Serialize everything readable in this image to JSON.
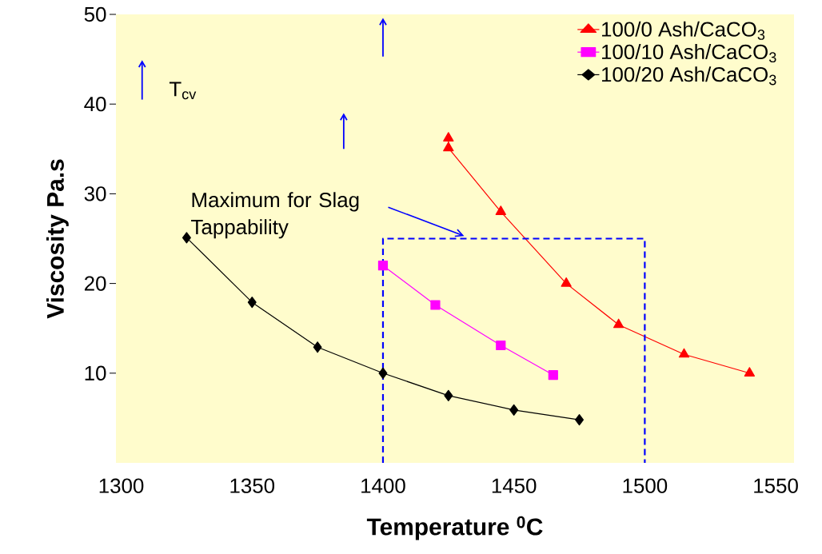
{
  "chart_data": {
    "type": "line",
    "xlabel": "Temperature $^{0}$C",
    "ylabel": "Viscosity Pa.s",
    "xlim": [
      1298,
      1557
    ],
    "ylim": [
      0,
      50
    ],
    "xticks": [
      1300,
      1350,
      1400,
      1450,
      1500,
      1550
    ],
    "yticks": [
      10,
      20,
      30,
      40,
      50
    ],
    "grid": false,
    "legend": "top right",
    "series": [
      {
        "name": "100/0 Ash/CaCO$_{3}$",
        "color": "#ff0000",
        "marker": "triangle",
        "x": [
          1425,
          1425,
          1445,
          1470,
          1490,
          1515,
          1540
        ],
        "values": [
          36.2,
          35.1,
          28.0,
          20.0,
          15.4,
          12.1,
          10.0
        ]
      },
      {
        "name": "100/10 Ash/CaCO$_{3}$",
        "color": "#ff00ff",
        "marker": "square",
        "x": [
          1400,
          1420,
          1445,
          1465
        ],
        "values": [
          22.0,
          17.6,
          13.1,
          9.8
        ]
      },
      {
        "name": "100/20 Ash/CaCO$_{3}$",
        "color": "#000000",
        "marker": "diamond",
        "x": [
          1325,
          1350,
          1375,
          1400,
          1425,
          1450,
          1475
        ],
        "values": [
          25.1,
          17.9,
          12.9,
          10.0,
          7.5,
          5.9,
          4.8
        ]
      },
      {
        "color": "#0000ff",
        "marker": "none",
        "line_style": "dashed",
        "x": [
          1400,
          1400,
          1500,
          1500
        ],
        "values": [
          0,
          25,
          25,
          0
        ]
      }
    ],
    "annotations": [
      "T$_{cv}$",
      "Maximum for Slag Tappability"
    ]
  }
}
